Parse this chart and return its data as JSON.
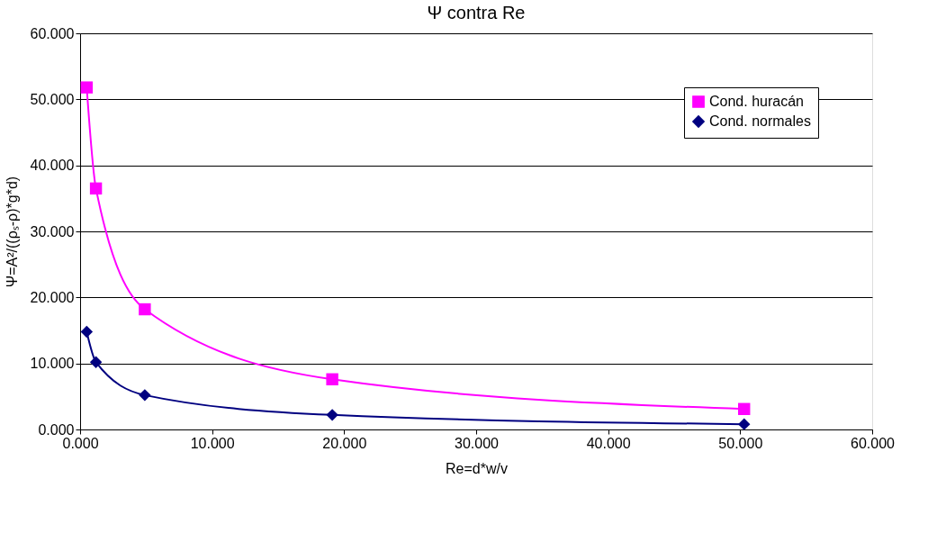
{
  "chart_data": {
    "type": "line",
    "title": "Ψ contra Re",
    "xlabel": "Re=d*w/v",
    "ylabel": "Ψ=A²/((ρₛ-ρ)*g*d)",
    "xlim": [
      0,
      60
    ],
    "ylim": [
      0,
      60
    ],
    "xticks": [
      {
        "value": 0,
        "label": "0.000"
      },
      {
        "value": 10,
        "label": "10.000"
      },
      {
        "value": 20,
        "label": "20.000"
      },
      {
        "value": 30,
        "label": "30.000"
      },
      {
        "value": 40,
        "label": "40.000"
      },
      {
        "value": 50,
        "label": "50.000"
      },
      {
        "value": 60,
        "label": "60.000"
      }
    ],
    "yticks": [
      {
        "value": 0,
        "label": "0.000"
      },
      {
        "value": 10,
        "label": "10.000"
      },
      {
        "value": 20,
        "label": "20.000"
      },
      {
        "value": 30,
        "label": "30.000"
      },
      {
        "value": 40,
        "label": "40.000"
      },
      {
        "value": 50,
        "label": "50.000"
      },
      {
        "value": 60,
        "label": "60.000"
      }
    ],
    "grid": "y",
    "legend": "top right",
    "line_style": "solid",
    "series": [
      {
        "name": "Cond. huracán",
        "color": "#ff00ff",
        "marker": "square",
        "x": [
          0.5,
          1.2,
          4.9,
          19.1,
          50.3
        ],
        "values": [
          51.8,
          36.5,
          18.2,
          7.6,
          3.1
        ]
      },
      {
        "name": "Cond. normales",
        "color": "#000080",
        "marker": "diamond",
        "x": [
          0.5,
          1.2,
          4.9,
          19.1,
          50.3
        ],
        "values": [
          14.8,
          10.2,
          5.2,
          2.2,
          0.8
        ]
      }
    ]
  }
}
